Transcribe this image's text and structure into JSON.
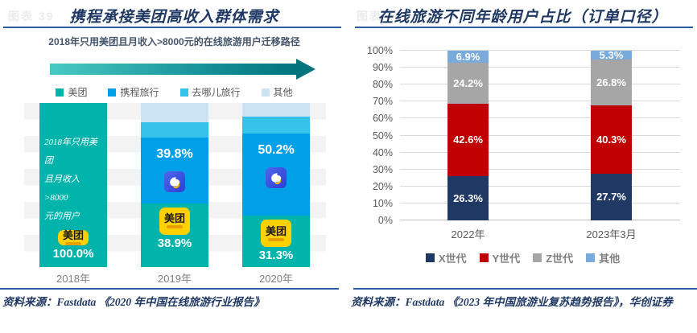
{
  "panels": {
    "left": {
      "figure_label": "图表 39",
      "source": "资料来源：Fastdata 《2020 年中国在线旅游行业报告》"
    },
    "right": {
      "figure_label": "图表 40",
      "source": "资料来源：Fastdata 《2023 年中国旅游业复苏趋势报告》，华创证券"
    }
  },
  "chart_data": [
    {
      "type": "bar",
      "stacked": true,
      "title": "携程承接美团高收入群体需求",
      "subtitle": "2018年只用美团且月收入>8000元的在线旅游用户迁移路径",
      "categories": [
        "2018年",
        "2019年",
        "2020年"
      ],
      "series": [
        {
          "name": "美团",
          "color": "#00b3ab",
          "values": [
            100.0,
            38.9,
            31.3
          ],
          "labels": [
            "100.0%",
            "38.9%",
            "31.3%"
          ]
        },
        {
          "name": "携程旅行",
          "color": "#00a0e9",
          "values": [
            0,
            39.8,
            50.2
          ],
          "labels": [
            null,
            "39.8%",
            "50.2%"
          ]
        },
        {
          "name": "去哪儿旅行",
          "color": "#35c3e9",
          "values": [
            0,
            9.7,
            10.0
          ],
          "labels": [
            null,
            null,
            null
          ],
          "estimated": true
        },
        {
          "name": "其他",
          "color": "#cbe3f3",
          "values": [
            0,
            11.6,
            8.5
          ],
          "labels": [
            null,
            null,
            null
          ],
          "estimated": true
        }
      ],
      "bar1_annotation": [
        "2018年只用美团",
        "且月收入>8000",
        "元的用户"
      ],
      "logos": {
        "meituan_label": "美团",
        "ctrip_icon": "ctrip-dolphin-app-icon",
        "meituan_icon": "meituan-app-icon"
      },
      "ylim": [
        0,
        100
      ],
      "grid": false,
      "legend_position": "top"
    },
    {
      "type": "bar",
      "stacked": true,
      "title": "在线旅游不同年龄用户占比（订单口径）",
      "categories": [
        "2022年",
        "2023年3月"
      ],
      "series": [
        {
          "name": "X世代",
          "color": "#1f3864",
          "values": [
            26.3,
            27.7
          ],
          "labels": [
            "26.3%",
            "27.7%"
          ]
        },
        {
          "name": "Y世代",
          "color": "#c00000",
          "values": [
            42.6,
            40.3
          ],
          "labels": [
            "42.6%",
            "40.3%"
          ]
        },
        {
          "name": "Z世代",
          "color": "#a6a6a6",
          "values": [
            24.2,
            26.8
          ],
          "labels": [
            "24.2%",
            "26.8%"
          ]
        },
        {
          "name": "其他",
          "color": "#78aadc",
          "values": [
            6.9,
            5.3
          ],
          "labels": [
            "6.9%",
            "5.3%"
          ]
        }
      ],
      "ylim": [
        0,
        100
      ],
      "yticks": [
        "0%",
        "10%",
        "20%",
        "30%",
        "40%",
        "50%",
        "60%",
        "70%",
        "80%",
        "90%",
        "100%"
      ],
      "grid": true,
      "legend_position": "bottom"
    }
  ]
}
